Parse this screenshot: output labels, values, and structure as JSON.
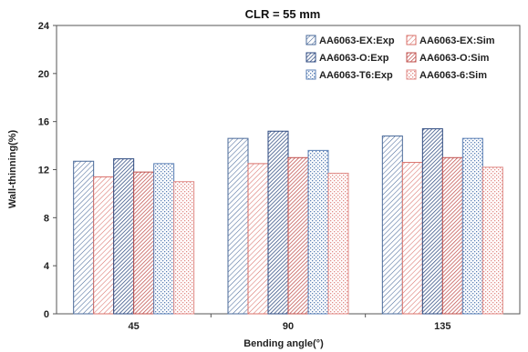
{
  "chart_data": {
    "type": "bar",
    "title": "CLR = 55 mm",
    "xlabel": "Bending angle(°)",
    "ylabel": "Wall-thinning(%)",
    "categories": [
      "45",
      "90",
      "135"
    ],
    "ylim": [
      0,
      24
    ],
    "yticks": [
      "0",
      "4",
      "8",
      "12",
      "16",
      "20",
      "24"
    ],
    "grid": false,
    "legend_position": "top-right",
    "series": [
      {
        "name": "AA6063-EX:Exp",
        "values": [
          12.7,
          14.6,
          14.8
        ],
        "color": "#4a6a9a",
        "pattern": "diag-fine"
      },
      {
        "name": "AA6063-EX:Sim",
        "values": [
          11.4,
          12.5,
          12.6
        ],
        "color": "#d9706a",
        "pattern": "diag-fine"
      },
      {
        "name": "AA6063-O:Exp",
        "values": [
          12.9,
          15.2,
          15.4
        ],
        "color": "#2e4a80",
        "pattern": "diag-dense"
      },
      {
        "name": "AA6063-O:Sim",
        "values": [
          11.8,
          13.0,
          13.0
        ],
        "color": "#c0504d",
        "pattern": "diag-dense"
      },
      {
        "name": "AA6063-T6:Exp",
        "values": [
          12.5,
          13.6,
          14.6
        ],
        "color": "#5a7fb5",
        "pattern": "dots"
      },
      {
        "name": "AA6063-6:Sim",
        "values": [
          11.0,
          11.7,
          12.2
        ],
        "color": "#e08a86",
        "pattern": "dots"
      }
    ]
  }
}
